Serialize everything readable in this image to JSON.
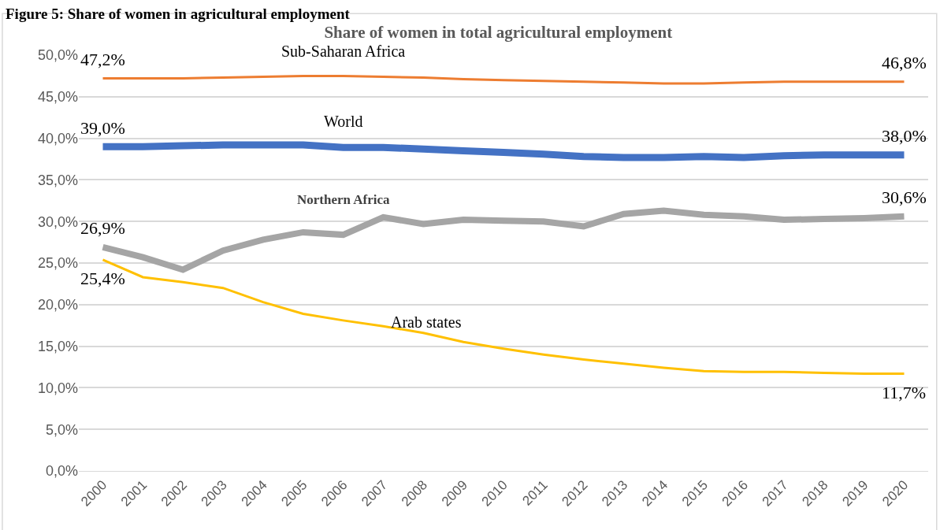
{
  "chart_data": {
    "type": "line",
    "title": "Share of women in total agricultural employment",
    "annotations": [
      "Figure 5: Share of women in agricultural employment"
    ],
    "categories": [
      "2000",
      "2001",
      "2002",
      "2003",
      "2004",
      "2005",
      "2006",
      "2007",
      "2008",
      "2009",
      "2010",
      "2011",
      "2012",
      "2013",
      "2014",
      "2015",
      "2016",
      "2017",
      "2018",
      "2019",
      "2020"
    ],
    "series": [
      {
        "name": "Sub-Saharan Africa",
        "color": "#ed7d31",
        "values": [
          47.2,
          47.2,
          47.2,
          47.3,
          47.4,
          47.5,
          47.5,
          47.4,
          47.3,
          47.1,
          47.0,
          46.9,
          46.8,
          46.7,
          46.6,
          46.6,
          46.7,
          46.8,
          46.8,
          46.8,
          46.8
        ],
        "value_labels": [
          "47,2%",
          null,
          null,
          null,
          null,
          null,
          null,
          null,
          null,
          null,
          null,
          null,
          null,
          null,
          null,
          null,
          null,
          null,
          null,
          null,
          "46,8%"
        ]
      },
      {
        "name": "World",
        "color": "#4472c4",
        "values": [
          39.0,
          39.0,
          39.1,
          39.2,
          39.2,
          39.2,
          38.9,
          38.9,
          38.7,
          38.5,
          38.3,
          38.1,
          37.8,
          37.7,
          37.7,
          37.8,
          37.7,
          37.9,
          38.0,
          38.0,
          38.0
        ],
        "value_labels": [
          "39,0%",
          null,
          null,
          null,
          null,
          null,
          null,
          null,
          null,
          null,
          null,
          null,
          null,
          null,
          null,
          null,
          null,
          null,
          null,
          null,
          "38,0%"
        ]
      },
      {
        "name": "Northern Africa",
        "color": "#a5a5a5",
        "values": [
          26.9,
          25.7,
          24.2,
          26.5,
          27.8,
          28.7,
          28.4,
          30.5,
          29.7,
          30.2,
          30.1,
          30.0,
          29.4,
          30.9,
          31.3,
          30.8,
          30.6,
          30.2,
          30.3,
          30.4,
          30.6
        ],
        "value_labels": [
          "26,9%",
          null,
          null,
          null,
          null,
          null,
          null,
          null,
          null,
          null,
          null,
          null,
          null,
          null,
          null,
          null,
          null,
          null,
          null,
          null,
          "30,6%"
        ]
      },
      {
        "name": "Arab states",
        "color": "#ffc000",
        "values": [
          25.4,
          23.3,
          22.7,
          22.0,
          20.3,
          18.9,
          18.1,
          17.4,
          16.6,
          15.5,
          14.7,
          14.0,
          13.4,
          12.9,
          12.4,
          12.0,
          11.9,
          11.9,
          11.8,
          11.7,
          11.7
        ],
        "value_labels": [
          "25,4%",
          null,
          null,
          null,
          null,
          null,
          null,
          null,
          null,
          null,
          null,
          null,
          null,
          null,
          null,
          null,
          null,
          null,
          null,
          null,
          "11,7%"
        ]
      }
    ],
    "ylim": [
      0,
      50
    ],
    "yticks": [
      {
        "value": 0,
        "label": "0,0%"
      },
      {
        "value": 5,
        "label": "5,0%"
      },
      {
        "value": 10,
        "label": "10,0%"
      },
      {
        "value": 15,
        "label": "15,0%"
      },
      {
        "value": 20,
        "label": "20,0%"
      },
      {
        "value": 25,
        "label": "25,0%"
      },
      {
        "value": 30,
        "label": "30,0%"
      },
      {
        "value": 35,
        "label": "35,0%"
      },
      {
        "value": 40,
        "label": "40,0%"
      },
      {
        "value": 45,
        "label": "45,0%"
      },
      {
        "value": 50,
        "label": "50,0%"
      }
    ],
    "grid": "y",
    "legend": false,
    "marker": "none",
    "line_style": "solid"
  }
}
